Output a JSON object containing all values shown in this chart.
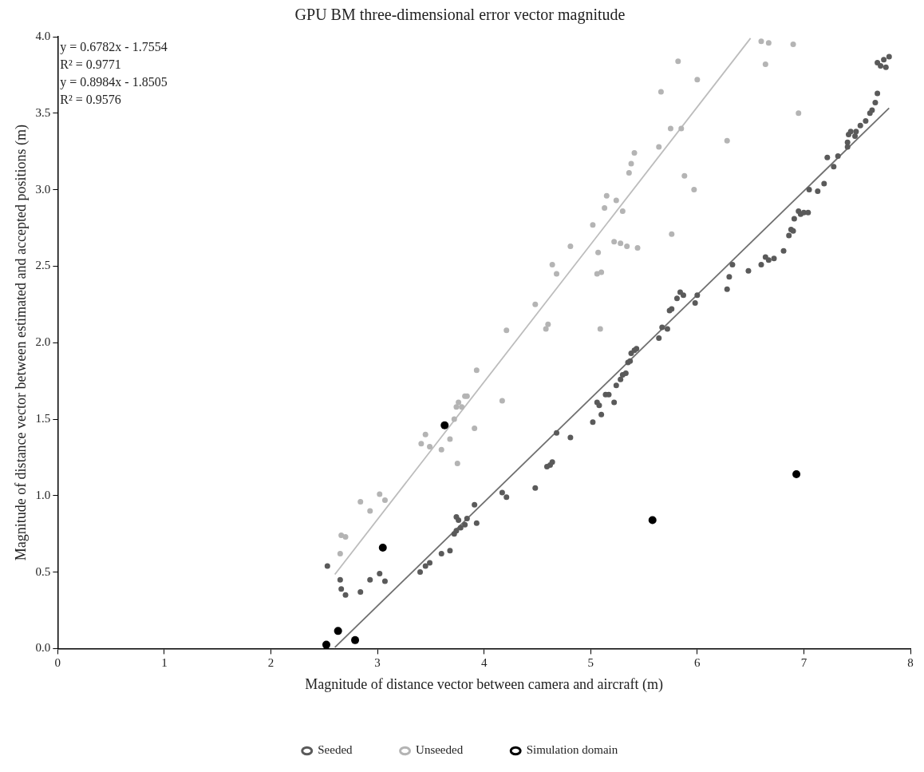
{
  "chart_data": {
    "type": "scatter",
    "title": "GPU BM three-dimensional error vector magnitude",
    "xlabel": "Magnitude of distance vector between camera and aircraft (m)",
    "ylabel": "Magnitude of distance vector between estimated and accepted positions (m)",
    "annotations": [
      "y = 0.6782x - 1.7554",
      "R² = 0.9771",
      "y = 0.8984x - 1.8505",
      "R² = 0.9576"
    ],
    "xlim": [
      0,
      8
    ],
    "xticks": [
      0,
      1,
      2,
      3,
      4,
      5,
      6,
      7,
      8
    ],
    "ylim": [
      0,
      4
    ],
    "yticks": [
      {
        "value": 0,
        "label": "0.0"
      },
      {
        "value": 0.5,
        "label": "0.5"
      },
      {
        "value": 1,
        "label": "1.0"
      },
      {
        "value": 1.5,
        "label": "1.5"
      },
      {
        "value": 2,
        "label": "2.0"
      },
      {
        "value": 2.5,
        "label": "2.5"
      },
      {
        "value": 3,
        "label": "3.0"
      },
      {
        "value": 3.5,
        "label": "3.5"
      },
      {
        "value": 4,
        "label": "4.0"
      }
    ],
    "grid": false,
    "legend": "bottom",
    "marker": "circle",
    "series": [
      {
        "name": "Seeded",
        "color": "#5a5a5a",
        "x": [
          2.53,
          2.65,
          2.66,
          2.7,
          2.84,
          2.93,
          3.02,
          3.07,
          3.4,
          3.45,
          3.49,
          3.6,
          3.68,
          3.72,
          3.74,
          3.74,
          3.76,
          3.78,
          3.82,
          3.84,
          3.91,
          3.93,
          4.17,
          4.21,
          4.48,
          4.59,
          4.62,
          4.64,
          4.68,
          4.81,
          5.02,
          5.06,
          5.08,
          5.1,
          5.14,
          5.17,
          5.22,
          5.24,
          5.28,
          5.3,
          5.33,
          5.35,
          5.37,
          5.38,
          5.41,
          5.43,
          5.64,
          5.67,
          5.72,
          5.74,
          5.76,
          5.81,
          5.84,
          5.87,
          5.98,
          6.0,
          6.28,
          6.3,
          6.33,
          6.48,
          6.6,
          6.64,
          6.67,
          6.72,
          6.81,
          6.86,
          6.88,
          6.9,
          6.91,
          6.95,
          6.97,
          7.0,
          7.04,
          7.05,
          7.13,
          7.19,
          7.22,
          7.28,
          7.32,
          7.41,
          7.41,
          7.42,
          7.44,
          7.48,
          7.49,
          7.53,
          7.58,
          7.62,
          7.64,
          7.67,
          7.69,
          7.69,
          7.72,
          7.75,
          7.77,
          7.8
        ],
        "values": [
          0.54,
          0.45,
          0.39,
          0.35,
          0.37,
          0.45,
          0.49,
          0.44,
          0.5,
          0.54,
          0.56,
          0.62,
          0.64,
          0.75,
          0.77,
          0.86,
          0.84,
          0.79,
          0.81,
          0.85,
          0.94,
          0.82,
          1.02,
          0.99,
          1.05,
          1.19,
          1.2,
          1.22,
          1.41,
          1.38,
          1.48,
          1.61,
          1.59,
          1.53,
          1.66,
          1.66,
          1.61,
          1.72,
          1.76,
          1.79,
          1.8,
          1.87,
          1.88,
          1.93,
          1.95,
          1.96,
          2.03,
          2.1,
          2.09,
          2.21,
          2.22,
          2.29,
          2.33,
          2.31,
          2.26,
          2.31,
          2.35,
          2.43,
          2.51,
          2.47,
          2.51,
          2.56,
          2.54,
          2.55,
          2.6,
          2.7,
          2.74,
          2.73,
          2.81,
          2.86,
          2.84,
          2.85,
          2.85,
          3.0,
          2.99,
          3.04,
          3.21,
          3.15,
          3.22,
          3.28,
          3.31,
          3.36,
          3.38,
          3.35,
          3.38,
          3.42,
          3.45,
          3.5,
          3.52,
          3.57,
          3.63,
          3.83,
          3.81,
          3.85,
          3.8,
          3.87
        ]
      },
      {
        "name": "Unseeded",
        "color": "#b4b4b4",
        "x": [
          2.65,
          2.66,
          2.7,
          2.84,
          2.93,
          3.02,
          3.07,
          3.41,
          3.45,
          3.49,
          3.6,
          3.68,
          3.75,
          3.91,
          3.72,
          3.74,
          3.76,
          3.79,
          3.82,
          3.84,
          3.93,
          4.17,
          4.21,
          4.48,
          4.58,
          4.6,
          4.64,
          4.68,
          4.81,
          5.02,
          5.07,
          5.06,
          5.1,
          5.09,
          5.22,
          5.28,
          5.34,
          5.44,
          5.13,
          5.15,
          5.24,
          5.3,
          5.36,
          5.38,
          5.41,
          5.64,
          5.66,
          5.75,
          5.85,
          5.76,
          5.88,
          5.97,
          5.82,
          6.0,
          6.28,
          6.6,
          6.67,
          6.9,
          6.64,
          6.95
        ],
        "values": [
          0.62,
          0.74,
          0.73,
          0.96,
          0.9,
          1.01,
          0.97,
          1.34,
          1.4,
          1.32,
          1.3,
          1.37,
          1.21,
          1.44,
          1.5,
          1.58,
          1.61,
          1.58,
          1.65,
          1.65,
          1.82,
          1.62,
          2.08,
          2.25,
          2.09,
          2.12,
          2.51,
          2.45,
          2.63,
          2.77,
          2.59,
          2.45,
          2.46,
          2.09,
          2.66,
          2.65,
          2.63,
          2.62,
          2.88,
          2.96,
          2.93,
          2.86,
          3.11,
          3.17,
          3.24,
          3.28,
          3.64,
          3.4,
          3.4,
          2.71,
          3.09,
          3.0,
          3.84,
          3.72,
          3.32,
          3.97,
          3.96,
          3.95,
          3.82,
          3.5
        ]
      },
      {
        "name": "Simulation domain",
        "color": "#000000",
        "x": [
          2.52,
          2.63,
          2.79,
          3.05,
          3.63,
          5.58,
          6.93
        ],
        "values": [
          0.025,
          0.115,
          0.055,
          0.66,
          1.46,
          0.84,
          1.14
        ]
      },
      {
        "type": "line",
        "color": "#707070",
        "marker": "none",
        "x": [
          2.6,
          7.8
        ],
        "values": [
          0.008,
          3.534
        ]
      },
      {
        "type": "line",
        "color": "#bcbcbc",
        "marker": "none",
        "x": [
          2.6,
          6.5
        ],
        "values": [
          0.485,
          3.99
        ]
      }
    ]
  }
}
